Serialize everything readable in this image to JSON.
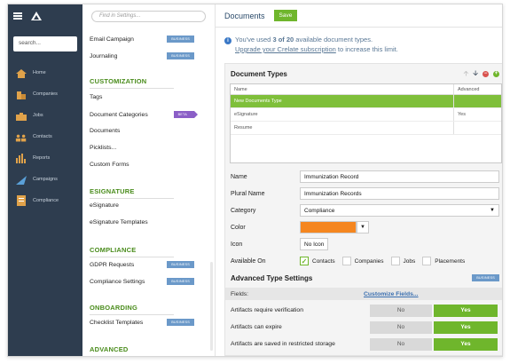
{
  "nav": {
    "search_placeholder": "search...",
    "items": [
      {
        "label": "Home",
        "icon": "home-icon"
      },
      {
        "label": "Companies",
        "icon": "companies-icon"
      },
      {
        "label": "Jobs",
        "icon": "jobs-icon"
      },
      {
        "label": "Contacts",
        "icon": "contacts-icon"
      },
      {
        "label": "Reports",
        "icon": "reports-icon"
      },
      {
        "label": "Campaigns",
        "icon": "campaigns-icon"
      },
      {
        "label": "Compliance",
        "icon": "compliance-icon"
      }
    ]
  },
  "settings": {
    "search_placeholder": "Find in Settings...",
    "rows": {
      "email_campaign": {
        "label": "Email Campaign",
        "badge": "BUSINESS"
      },
      "journaling": {
        "label": "Journaling",
        "badge": "BUSINESS"
      },
      "tags": {
        "label": "Tags"
      },
      "document_categories": {
        "label": "Document Categories",
        "badge": "BETA"
      },
      "documents": {
        "label": "Documents"
      },
      "picklists": {
        "label": "Picklists..."
      },
      "custom_forms": {
        "label": "Custom Forms"
      },
      "esignature": {
        "label": "eSignature"
      },
      "esignature_templates": {
        "label": "eSignature Templates"
      },
      "gdpr_requests": {
        "label": "GDPR Requests",
        "badge": "BUSINESS"
      },
      "compliance_settings": {
        "label": "Compliance Settings",
        "badge": "BUSINESS"
      },
      "checklist_templates": {
        "label": "Checklist Templates",
        "badge": "BUSINESS"
      }
    },
    "sections": {
      "customization": "CUSTOMIZATION",
      "esignature": "ESIGNATURE",
      "compliance": "COMPLIANCE",
      "onboarding": "ONBOARDING",
      "advanced": "ADVANCED"
    }
  },
  "main": {
    "title": "Documents",
    "save_label": "Save",
    "info_prefix": "You've used ",
    "info_count": "3 of 20",
    "info_suffix": " available document types.",
    "upgrade_link": "Upgrade your Crelate subscription",
    "upgrade_suffix": " to increase this limit.",
    "panel_title": "Document Types",
    "table": {
      "col_name": "Name",
      "col_advanced": "Advanced",
      "rows": [
        {
          "name": "New Documents Type",
          "advanced": "",
          "selected": true
        },
        {
          "name": "eSignature",
          "advanced": "Yes",
          "selected": false
        },
        {
          "name": "Resume",
          "advanced": "",
          "selected": false
        }
      ]
    },
    "form": {
      "name_label": "Name",
      "name_value": "Immunization Record",
      "plural_label": "Plural Name",
      "plural_value": "Immunization Records",
      "category_label": "Category",
      "category_value": "Compliance",
      "color_label": "Color",
      "color_value": "#f5861f",
      "icon_label": "Icon",
      "icon_value": "No Icon",
      "available_label": "Available On",
      "available": [
        {
          "label": "Contacts",
          "checked": true
        },
        {
          "label": "Companies",
          "checked": false
        },
        {
          "label": "Jobs",
          "checked": false
        },
        {
          "label": "Placements",
          "checked": false
        }
      ]
    },
    "advanced": {
      "title": "Advanced Type Settings",
      "badge": "BUSINESS",
      "fields_label": "Fields:",
      "customize_link": "Customize Fields...",
      "no_label": "No",
      "yes_label": "Yes",
      "rows": [
        "Artifacts require verification",
        "Artifacts can expire",
        "Artifacts are saved in restricted storage"
      ]
    }
  },
  "colors": {
    "nav_bg": "#2e3d4f",
    "accent_green": "#6fb62c",
    "section_green": "#4a8c1c",
    "badge_blue": "#6b99c9",
    "badge_purple": "#8b5fc7"
  }
}
